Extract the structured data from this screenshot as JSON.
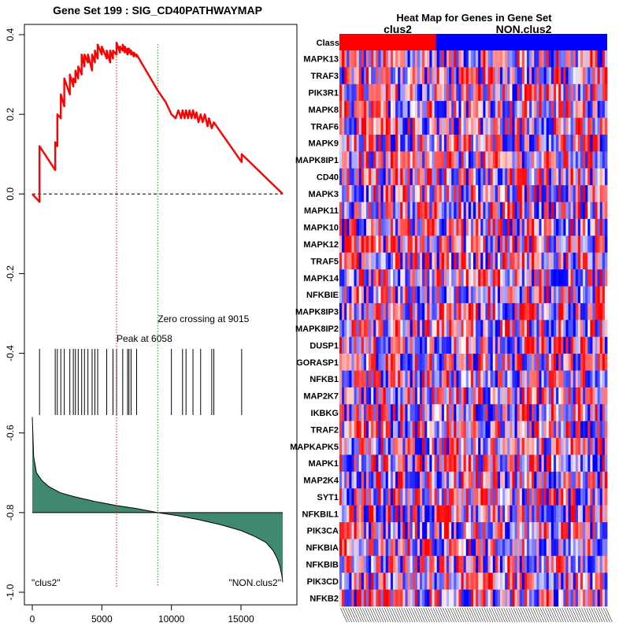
{
  "chart_data": [
    {
      "type": "line",
      "title": "Gene Set  199 : SIG_CD40PATHWAYMAP",
      "xlabel": "",
      "ylabel": "",
      "xlim": [
        0,
        18000
      ],
      "ylim": [
        -1.0,
        0.4
      ],
      "x_ticks": [
        0,
        5000,
        10000,
        15000
      ],
      "y_ticks": [
        0.4,
        0.2,
        0.0,
        -0.2,
        -0.4,
        -0.6,
        -0.8,
        -1.0
      ],
      "x_tick_labels": [
        "0",
        "5000",
        "10000",
        "15000"
      ],
      "y_tick_labels": [
        "0.4",
        "0.2",
        "0.0",
        "-0.2",
        "-0.4",
        "-0.6",
        "-0.8",
        "-1.0"
      ],
      "enrichment_score": {
        "name": "running enrichment score",
        "color": "#ff0000",
        "x": [
          0,
          520,
          520,
          1650,
          1650,
          1800,
          1800,
          2050,
          2050,
          2300,
          2300,
          2700,
          2700,
          2950,
          2950,
          3100,
          3100,
          3300,
          3300,
          3550,
          3550,
          3750,
          3750,
          4000,
          4000,
          4300,
          4300,
          4500,
          4500,
          4700,
          4700,
          5000,
          5000,
          5350,
          5350,
          5600,
          5600,
          5800,
          5800,
          6058,
          6058,
          6300,
          6300,
          6500,
          6500,
          6650,
          6650,
          6850,
          6850,
          6950,
          6950,
          7100,
          7100,
          7300,
          7300,
          7500,
          7500,
          9015,
          9600,
          10000,
          10300,
          10500,
          10700,
          10800,
          10950,
          11050,
          11200,
          11300,
          11450,
          11550,
          11700,
          11800,
          11950,
          12100,
          12250,
          12400,
          12600,
          12700,
          12900,
          13050,
          15050,
          15050,
          18000
        ],
        "y": [
          0.0,
          -0.02,
          0.12,
          0.06,
          0.13,
          0.12,
          0.2,
          0.19,
          0.25,
          0.22,
          0.29,
          0.25,
          0.3,
          0.27,
          0.29,
          0.28,
          0.31,
          0.29,
          0.32,
          0.3,
          0.35,
          0.32,
          0.35,
          0.33,
          0.35,
          0.31,
          0.35,
          0.33,
          0.36,
          0.34,
          0.375,
          0.35,
          0.37,
          0.34,
          0.36,
          0.33,
          0.36,
          0.34,
          0.36,
          0.35,
          0.38,
          0.355,
          0.37,
          0.36,
          0.375,
          0.355,
          0.37,
          0.35,
          0.365,
          0.355,
          0.365,
          0.35,
          0.36,
          0.345,
          0.355,
          0.345,
          0.35,
          0.26,
          0.23,
          0.2,
          0.19,
          0.21,
          0.19,
          0.21,
          0.19,
          0.21,
          0.19,
          0.21,
          0.19,
          0.21,
          0.19,
          0.205,
          0.18,
          0.2,
          0.18,
          0.2,
          0.17,
          0.19,
          0.165,
          0.18,
          0.08,
          0.1,
          0.0
        ]
      },
      "zero_line": 0.0,
      "hit_positions": [
        520,
        1650,
        1800,
        2050,
        2300,
        2700,
        2950,
        3100,
        3300,
        3550,
        3750,
        4000,
        4300,
        4500,
        4700,
        5350,
        5800,
        6058,
        6500,
        6850,
        6950,
        7100,
        7500,
        10000,
        10800,
        11050,
        11550,
        12100,
        12900,
        13050,
        15050
      ],
      "peak": {
        "x": 6058,
        "label": "Peak at 6058",
        "color": "#ff0000"
      },
      "zero_crossing": {
        "x": 9015,
        "label": "Zero crossing at 9015",
        "color": "#00aa00"
      },
      "ranked_metric": {
        "fill": "#3f8a6e",
        "baseline": -0.8,
        "x": [
          0,
          100,
          300,
          700,
          1200,
          2000,
          3000,
          4500,
          6000,
          7500,
          9015,
          10500,
          12000,
          13500,
          15000,
          16000,
          16800,
          17300,
          17600,
          17800,
          17950,
          18000
        ],
        "y": [
          -0.56,
          -0.66,
          -0.7,
          -0.72,
          -0.735,
          -0.75,
          -0.76,
          -0.772,
          -0.782,
          -0.79,
          -0.8,
          -0.808,
          -0.818,
          -0.83,
          -0.845,
          -0.86,
          -0.875,
          -0.895,
          -0.915,
          -0.935,
          -0.96,
          -0.975
        ]
      },
      "corner_labels": {
        "left": "\"clus2\"",
        "right": "\"NON.clus2\""
      }
    },
    {
      "type": "heatmap",
      "title": "Heat Map for Genes in Gene Set",
      "class_row_label": "Class",
      "class_groups": [
        {
          "name": "clus2",
          "color": "#ff0000"
        },
        {
          "name": "NON.clus2",
          "color": "#0000ff"
        }
      ],
      "class_split_fraction": 0.36,
      "n_columns": 110,
      "genes": [
        "MAPK13",
        "TRAF3",
        "PIK3R1",
        "MAPK8",
        "TRAF6",
        "MAPK9",
        "MAPK8IP1",
        "CD40",
        "MAPK3",
        "MAPK11",
        "MAPK10",
        "MAPK12",
        "TRAF5",
        "MAPK14",
        "NFKBIE",
        "MAPK8IP3",
        "MAPK8IP2",
        "DUSP1",
        "GORASP1",
        "NFKB1",
        "MAP2K7",
        "IKBKG",
        "TRAF2",
        "MAPKAPK5",
        "MAPK1",
        "MAP2K4",
        "SYT1",
        "NFKBIL1",
        "PIK3CA",
        "NFKBIA",
        "NFKBIB",
        "PIK3CD",
        "NFKB2"
      ],
      "color_low": "#0000ff",
      "color_mid": "#ffffff",
      "color_high": "#ff0000"
    }
  ]
}
